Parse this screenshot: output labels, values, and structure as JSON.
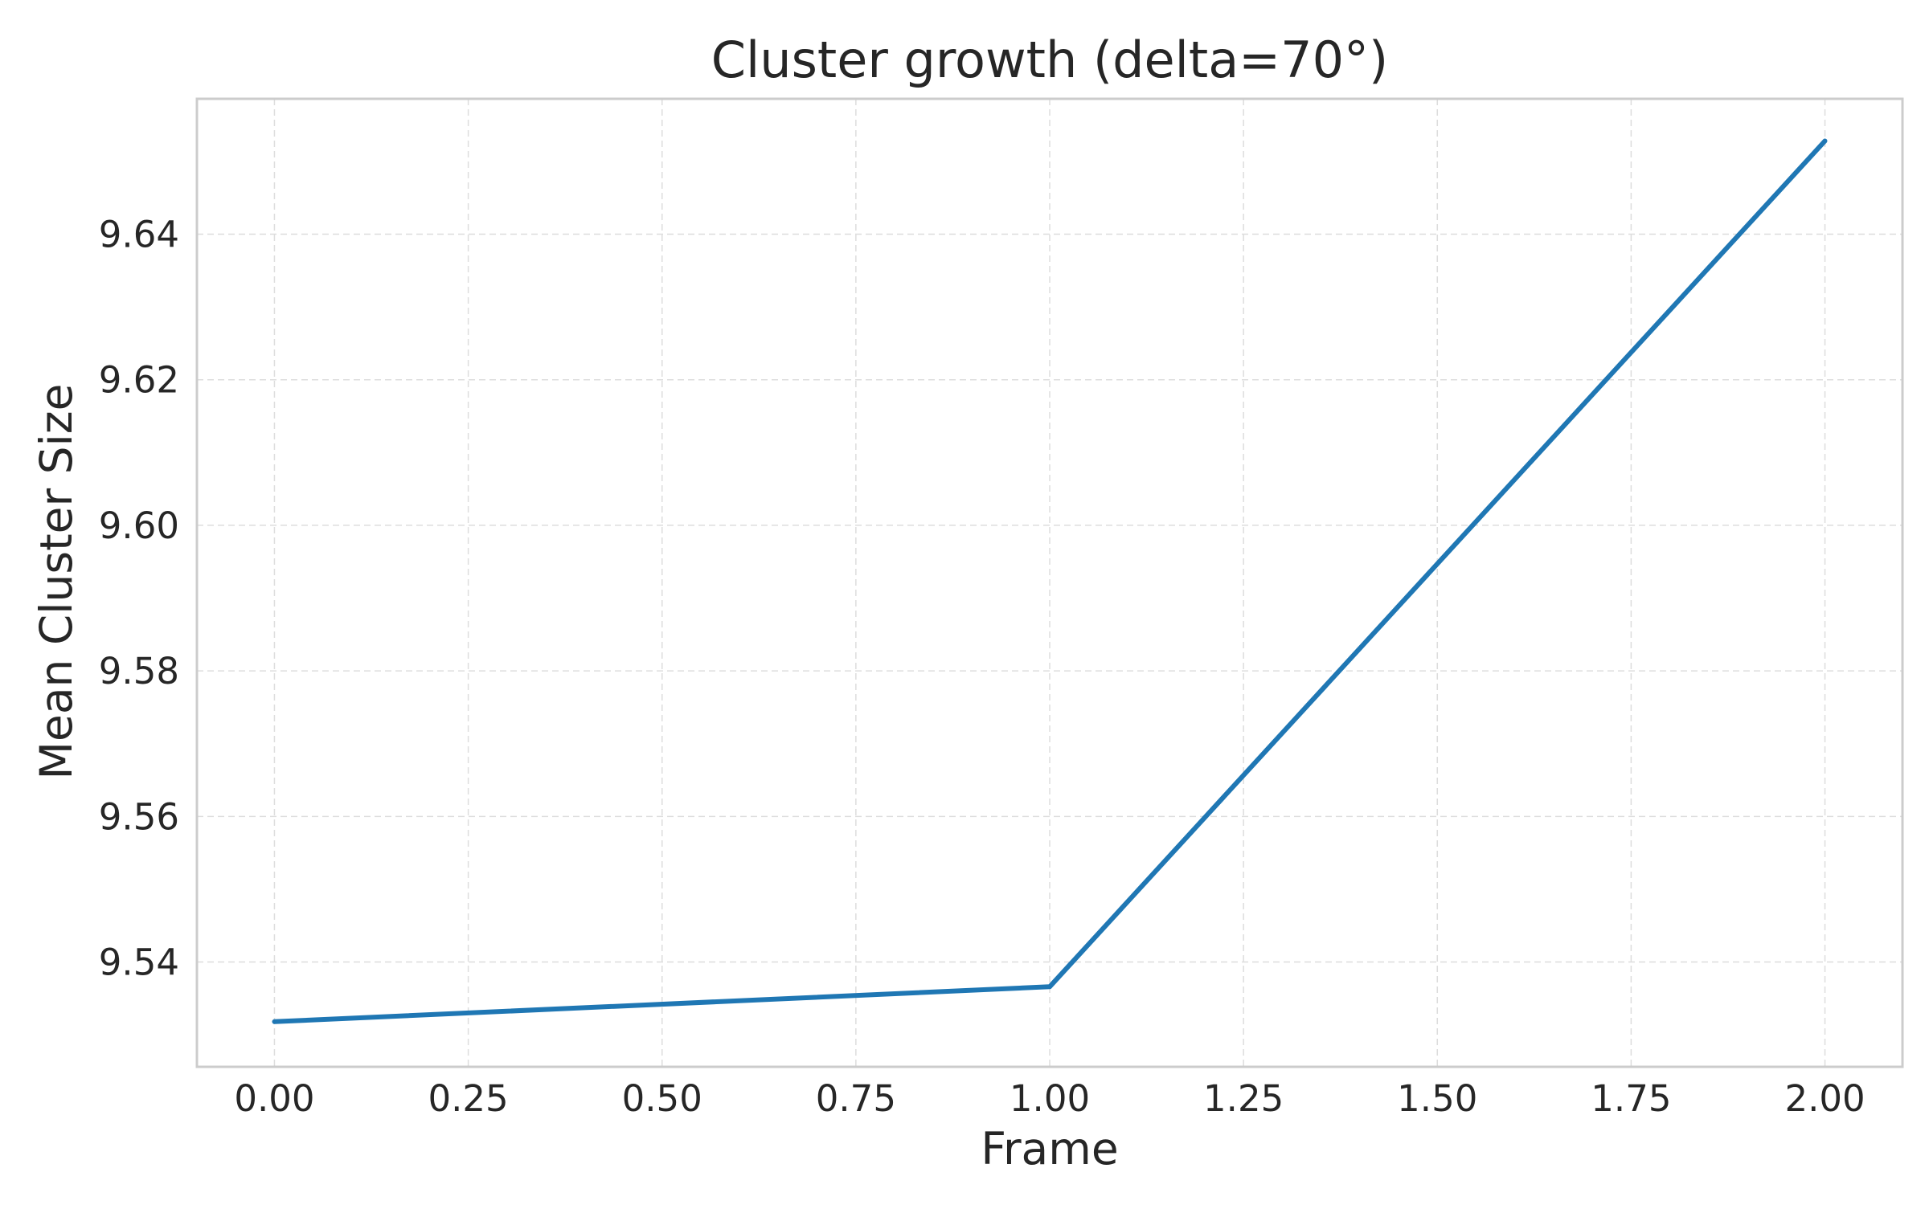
{
  "chart_data": {
    "type": "line",
    "title": "Cluster growth (delta=70°)",
    "xlabel": "Frame",
    "ylabel": "Mean Cluster Size",
    "xlim": [
      -0.1,
      2.1
    ],
    "ylim": [
      9.5256,
      9.6586
    ],
    "x_ticks": [
      0.0,
      0.25,
      0.5,
      0.75,
      1.0,
      1.25,
      1.5,
      1.75,
      2.0
    ],
    "x_tick_labels": [
      "0.00",
      "0.25",
      "0.50",
      "0.75",
      "1.00",
      "1.25",
      "1.50",
      "1.75",
      "2.00"
    ],
    "y_ticks": [
      9.54,
      9.56,
      9.58,
      9.6,
      9.62,
      9.64
    ],
    "y_tick_labels": [
      "9.54",
      "9.56",
      "9.58",
      "9.60",
      "9.62",
      "9.64"
    ],
    "grid": true,
    "series": [
      {
        "color": "#1f77b4",
        "x": [
          0,
          1,
          2
        ],
        "y": [
          9.5318,
          9.5366,
          9.6528
        ]
      }
    ]
  }
}
